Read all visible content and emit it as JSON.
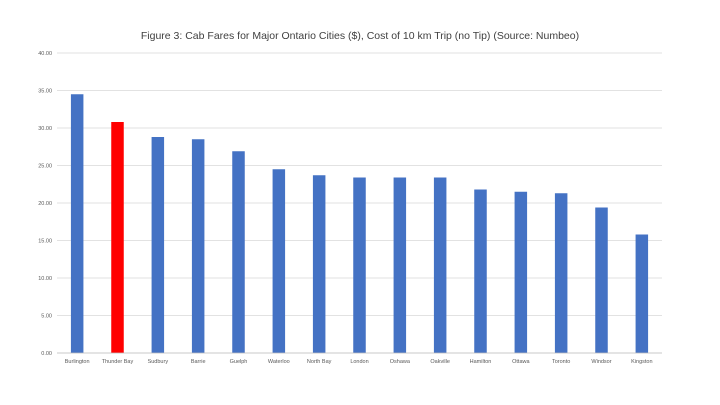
{
  "chart_data": {
    "type": "bar",
    "title": "Figure 3: Cab Fares for Major Ontario Cities ($), Cost of 10 km Trip (no Tip) (Source: Numbeo)",
    "xlabel": "",
    "ylabel": "",
    "ylim": [
      0,
      40
    ],
    "yticks": [
      "0.00",
      "5.00",
      "10.00",
      "15.00",
      "20.00",
      "25.00",
      "30.00",
      "35.00",
      "40.00"
    ],
    "grid": true,
    "categories": [
      "Burlington",
      "Thunder Bay",
      "Sudbury",
      "Barrie",
      "Guelph",
      "Waterloo",
      "North Bay",
      "London",
      "Oshawa",
      "Oakville",
      "Hamilton",
      "Ottawa",
      "Toronto",
      "Windsor",
      "Kingston"
    ],
    "values": [
      34.5,
      30.8,
      28.8,
      28.5,
      26.9,
      24.5,
      23.7,
      23.4,
      23.4,
      23.4,
      21.8,
      21.5,
      21.3,
      19.4,
      15.8
    ],
    "bar_color": "#4472C4",
    "highlight_color": "#FF0000",
    "highlight_category": "Thunder Bay"
  }
}
